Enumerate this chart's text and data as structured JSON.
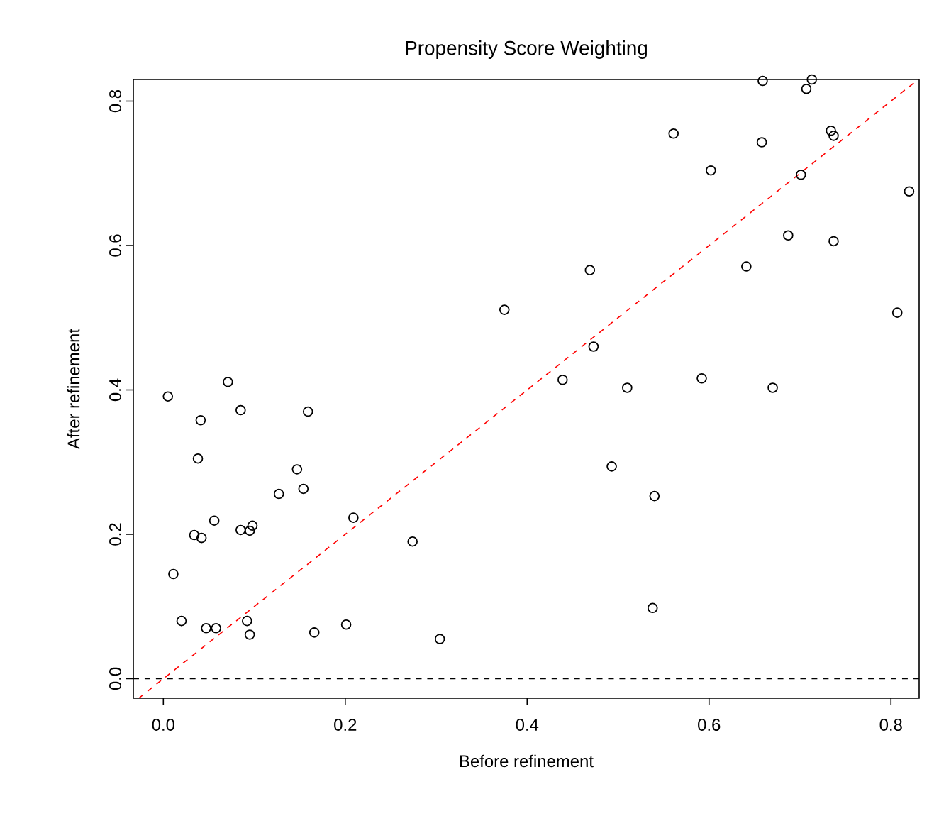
{
  "chart_data": {
    "type": "scatter",
    "title": "Propensity Score Weighting",
    "xlabel": "Before refinement",
    "ylabel": "After refinement",
    "xlim": [
      -0.033,
      0.831
    ],
    "ylim": [
      -0.027,
      0.83
    ],
    "xticks": [
      {
        "value": 0,
        "label": "0.0"
      },
      0.2,
      0.4,
      0.6,
      0.8
    ],
    "yticks": [
      {
        "value": 0,
        "label": "0.0"
      },
      0.2,
      0.4,
      0.6,
      0.8
    ],
    "grid": false,
    "series": [
      {
        "color": "#000000",
        "marker": "circle",
        "x": [
          0.005,
          0.071,
          0.085,
          0.041,
          0.159,
          0.038,
          0.147,
          0.127,
          0.154,
          0.056,
          0.034,
          0.042,
          0.085,
          0.095,
          0.098,
          0.209,
          0.274,
          0.011,
          0.02,
          0.047,
          0.058,
          0.092,
          0.095,
          0.166,
          0.201,
          0.304,
          0.473,
          0.439,
          0.51,
          0.592,
          0.67,
          0.493,
          0.54,
          0.538,
          0.659,
          0.713,
          0.707,
          0.561,
          0.658,
          0.734,
          0.737,
          0.602,
          0.701,
          0.82,
          0.687,
          0.737,
          0.469,
          0.641,
          0.807,
          0.375
        ],
        "values": [
          0.391,
          0.411,
          0.372,
          0.358,
          0.37,
          0.305,
          0.29,
          0.256,
          0.263,
          0.219,
          0.199,
          0.195,
          0.206,
          0.205,
          0.212,
          0.223,
          0.19,
          0.145,
          0.08,
          0.07,
          0.07,
          0.08,
          0.061,
          0.064,
          0.075,
          0.055,
          0.46,
          0.414,
          0.403,
          0.416,
          0.403,
          0.294,
          0.253,
          0.098,
          0.828,
          0.83,
          0.817,
          0.755,
          0.743,
          0.759,
          0.752,
          0.704,
          0.698,
          0.675,
          0.614,
          0.606,
          0.566,
          0.571,
          0.507,
          0.511
        ]
      },
      {
        "type": "line",
        "color": "#ff0000",
        "line_style": "dashed",
        "marker": "none",
        "x": [
          -0.027,
          0.83
        ],
        "values": [
          -0.027,
          0.83
        ]
      }
    ],
    "ref_lines": [
      {
        "axis": "y",
        "value": 0,
        "color": "#000000",
        "line_style": "dashed"
      }
    ]
  }
}
